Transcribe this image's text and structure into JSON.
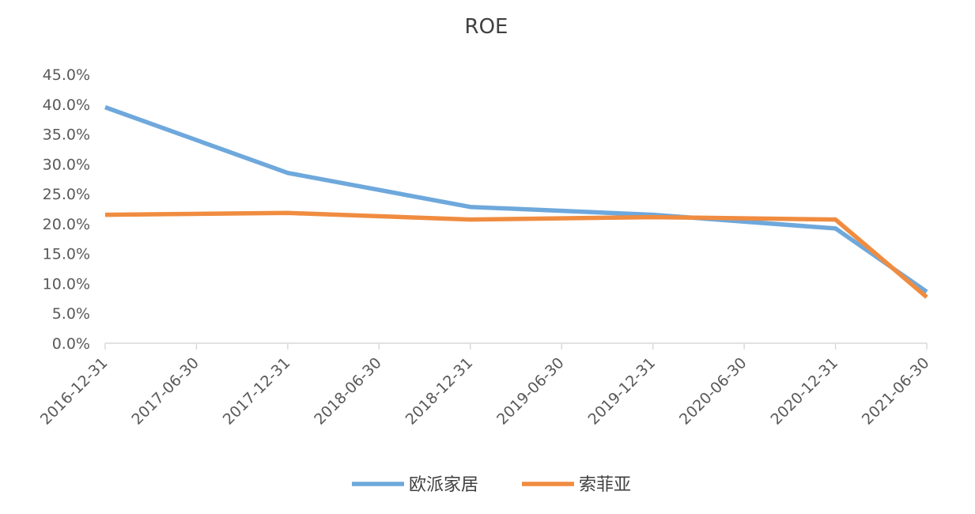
{
  "chart_data": {
    "type": "line",
    "title": "ROE",
    "xlabel": "",
    "ylabel": "",
    "x": [
      "2016-12-31",
      "2017-06-30",
      "2017-12-31",
      "2018-06-30",
      "2018-12-31",
      "2019-06-30",
      "2019-12-31",
      "2020-06-30",
      "2020-12-31",
      "2021-06-30"
    ],
    "yticks": [
      "0.0%",
      "5.0%",
      "10.0%",
      "15.0%",
      "20.0%",
      "25.0%",
      "30.0%",
      "35.0%",
      "40.0%",
      "45.0%"
    ],
    "ylim": [
      0,
      45
    ],
    "grid": false,
    "legend_position": "bottom",
    "series": [
      {
        "name": "欧派家居",
        "color": "#6ea8dc",
        "points": [
          {
            "x": "2016-12-31",
            "y": 39.5
          },
          {
            "x": "2017-12-31",
            "y": 28.5
          },
          {
            "x": "2018-12-31",
            "y": 22.8
          },
          {
            "x": "2019-12-31",
            "y": 21.5
          },
          {
            "x": "2020-12-31",
            "y": 19.2
          },
          {
            "x": "2021-06-30",
            "y": 8.6
          }
        ]
      },
      {
        "name": "索菲亚",
        "color": "#f08c40",
        "points": [
          {
            "x": "2016-12-31",
            "y": 21.5
          },
          {
            "x": "2017-12-31",
            "y": 21.8
          },
          {
            "x": "2018-12-31",
            "y": 20.7
          },
          {
            "x": "2019-12-31",
            "y": 21.1
          },
          {
            "x": "2020-12-31",
            "y": 20.7
          },
          {
            "x": "2021-06-30",
            "y": 7.7
          }
        ]
      }
    ]
  }
}
